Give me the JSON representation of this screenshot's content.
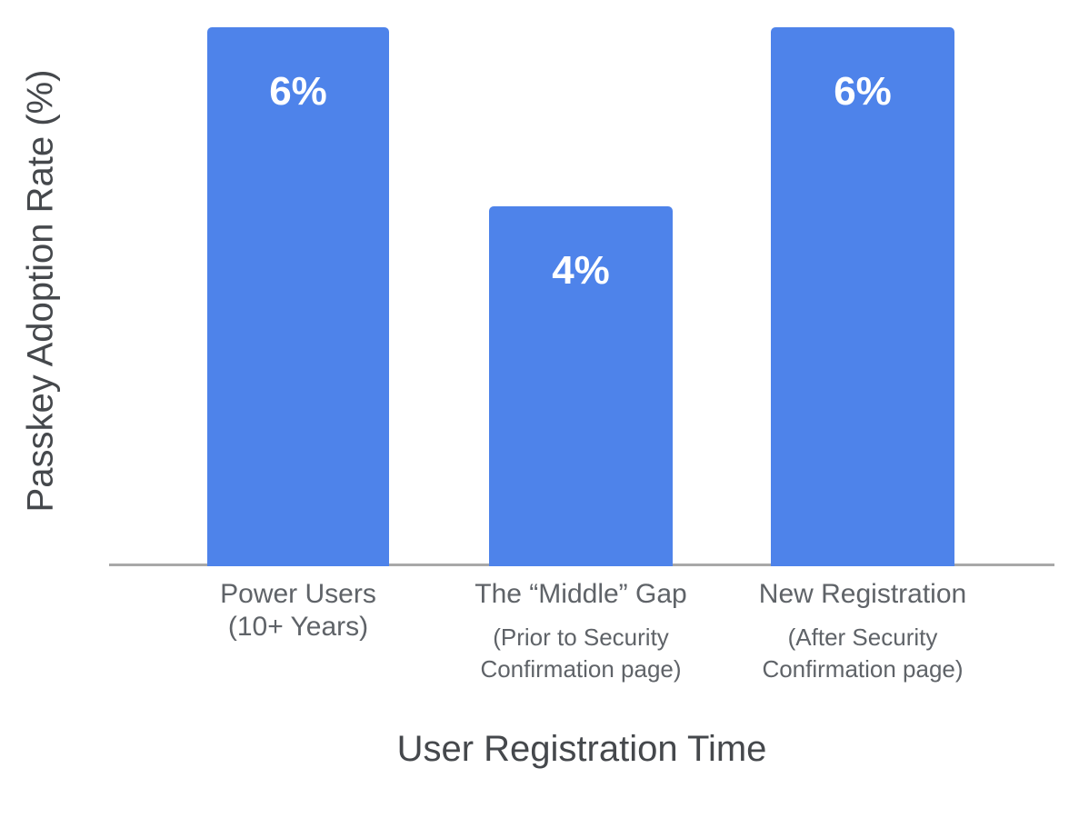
{
  "chart_data": {
    "type": "bar",
    "title": "",
    "xlabel": "User Registration Time",
    "ylabel": "Passkey Adoption Rate (%)",
    "categories": [
      {
        "label": "Power Users",
        "sublabel": "(10+ Years)"
      },
      {
        "label": "The “Middle” Gap",
        "sublabel": "(Prior to Security Confirmation page)"
      },
      {
        "label": "New Registration",
        "sublabel": "(After Security Confirmation page)"
      }
    ],
    "values": [
      6,
      4,
      6
    ],
    "value_labels": [
      "6%",
      "4%",
      "6%"
    ],
    "unit": "%",
    "ylim": [
      0,
      6.3
    ],
    "grid": false,
    "legend": false,
    "bar_color": "#4E83EA",
    "value_label_color": "#FFFFFF",
    "axis_line_color": "#A8A8A8",
    "category_label_color": "#5F6368",
    "axis_title_color": "#45484C"
  }
}
